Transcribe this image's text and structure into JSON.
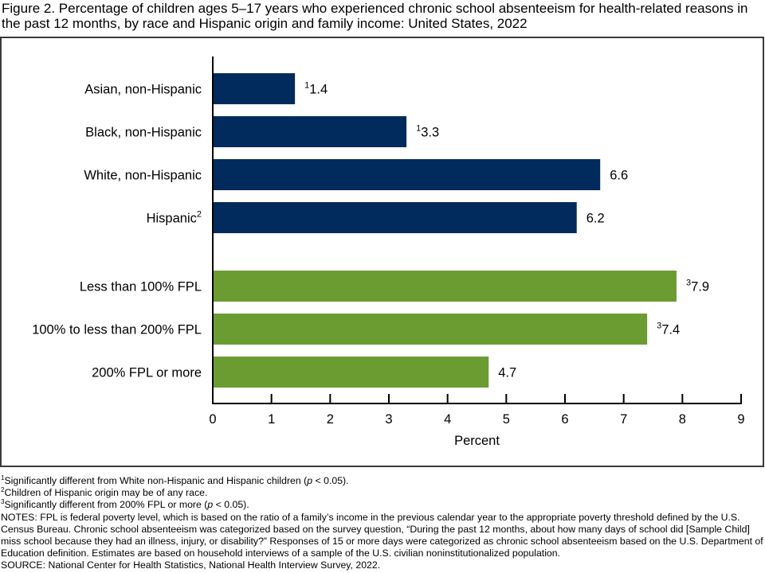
{
  "figure": {
    "title": "Figure 2. Percentage of children ages 5–17 years who experienced chronic school absenteeism for health-related reasons in the past 12 months, by race and Hispanic origin and family income: United States, 2022"
  },
  "colors": {
    "race_bar": "#002B5C",
    "income_bar": "#6B9C32",
    "axis": "#000000",
    "frame": "#3a3a3a"
  },
  "chart_data": {
    "type": "bar",
    "orientation": "horizontal",
    "title": "Percentage of children ages 5–17 years who experienced chronic school absenteeism for health-related reasons in the past 12 months, by race and Hispanic origin and family income: United States, 2022",
    "xlabel": "Percent",
    "ylabel": "",
    "xlim": [
      0,
      9
    ],
    "x_ticks": [
      "0",
      "1",
      "2",
      "3",
      "4",
      "5",
      "6",
      "7",
      "8",
      "9"
    ],
    "grid": false,
    "legend": "none",
    "groups": [
      {
        "name": "Race and Hispanic origin",
        "color": "#002B5C",
        "bars": [
          {
            "category": "Asian, non-Hispanic",
            "category_sup": "",
            "value": 1.4,
            "label_sup": "1",
            "label": "1.4"
          },
          {
            "category": "Black, non-Hispanic",
            "category_sup": "",
            "value": 3.3,
            "label_sup": "1",
            "label": "3.3"
          },
          {
            "category": "White, non-Hispanic",
            "category_sup": "",
            "value": 6.6,
            "label_sup": "",
            "label": "6.6"
          },
          {
            "category": "Hispanic",
            "category_sup": "2",
            "value": 6.2,
            "label_sup": "",
            "label": "6.2"
          }
        ]
      },
      {
        "name": "Family income",
        "color": "#6B9C32",
        "bars": [
          {
            "category": "Less than 100% FPL",
            "category_sup": "",
            "value": 7.9,
            "label_sup": "3",
            "label": "7.9"
          },
          {
            "category": "100% to less than 200% FPL",
            "category_sup": "",
            "value": 7.4,
            "label_sup": "3",
            "label": "7.4"
          },
          {
            "category": "200% FPL or more",
            "category_sup": "",
            "value": 4.7,
            "label_sup": "",
            "label": "4.7"
          }
        ]
      }
    ]
  },
  "footnotes": {
    "fn1_mark": "1",
    "fn1_text_a": "Significantly different from White non-Hispanic and Hispanic children (",
    "fn1_p": "p",
    "fn1_text_b": " < 0.05).",
    "fn2_mark": "2",
    "fn2_text": "Children of Hispanic origin may be of any race.",
    "fn3_mark": "3",
    "fn3_text_a": "Significantly different from 200% FPL or more (",
    "fn3_p": "p",
    "fn3_text_b": " < 0.05).",
    "notes": "NOTES: FPL is federal poverty level, which is based on the ratio of a family’s income in the previous calendar year to the appropriate poverty threshold defined by the U.S. Census Bureau. Chronic school absenteeism was categorized based on the survey question, “During the past 12 months, about how many days of school did [Sample Child] miss school because they had an illness, injury, or disability?” Responses of 15 or more days were categorized as chronic school absenteeism based on the U.S. Department of Education definition. Estimates are based on household interviews of a sample of the U.S. civilian noninstitutionalized population.",
    "source": "SOURCE: National Center for Health Statistics, National Health Interview Survey, 2022."
  }
}
